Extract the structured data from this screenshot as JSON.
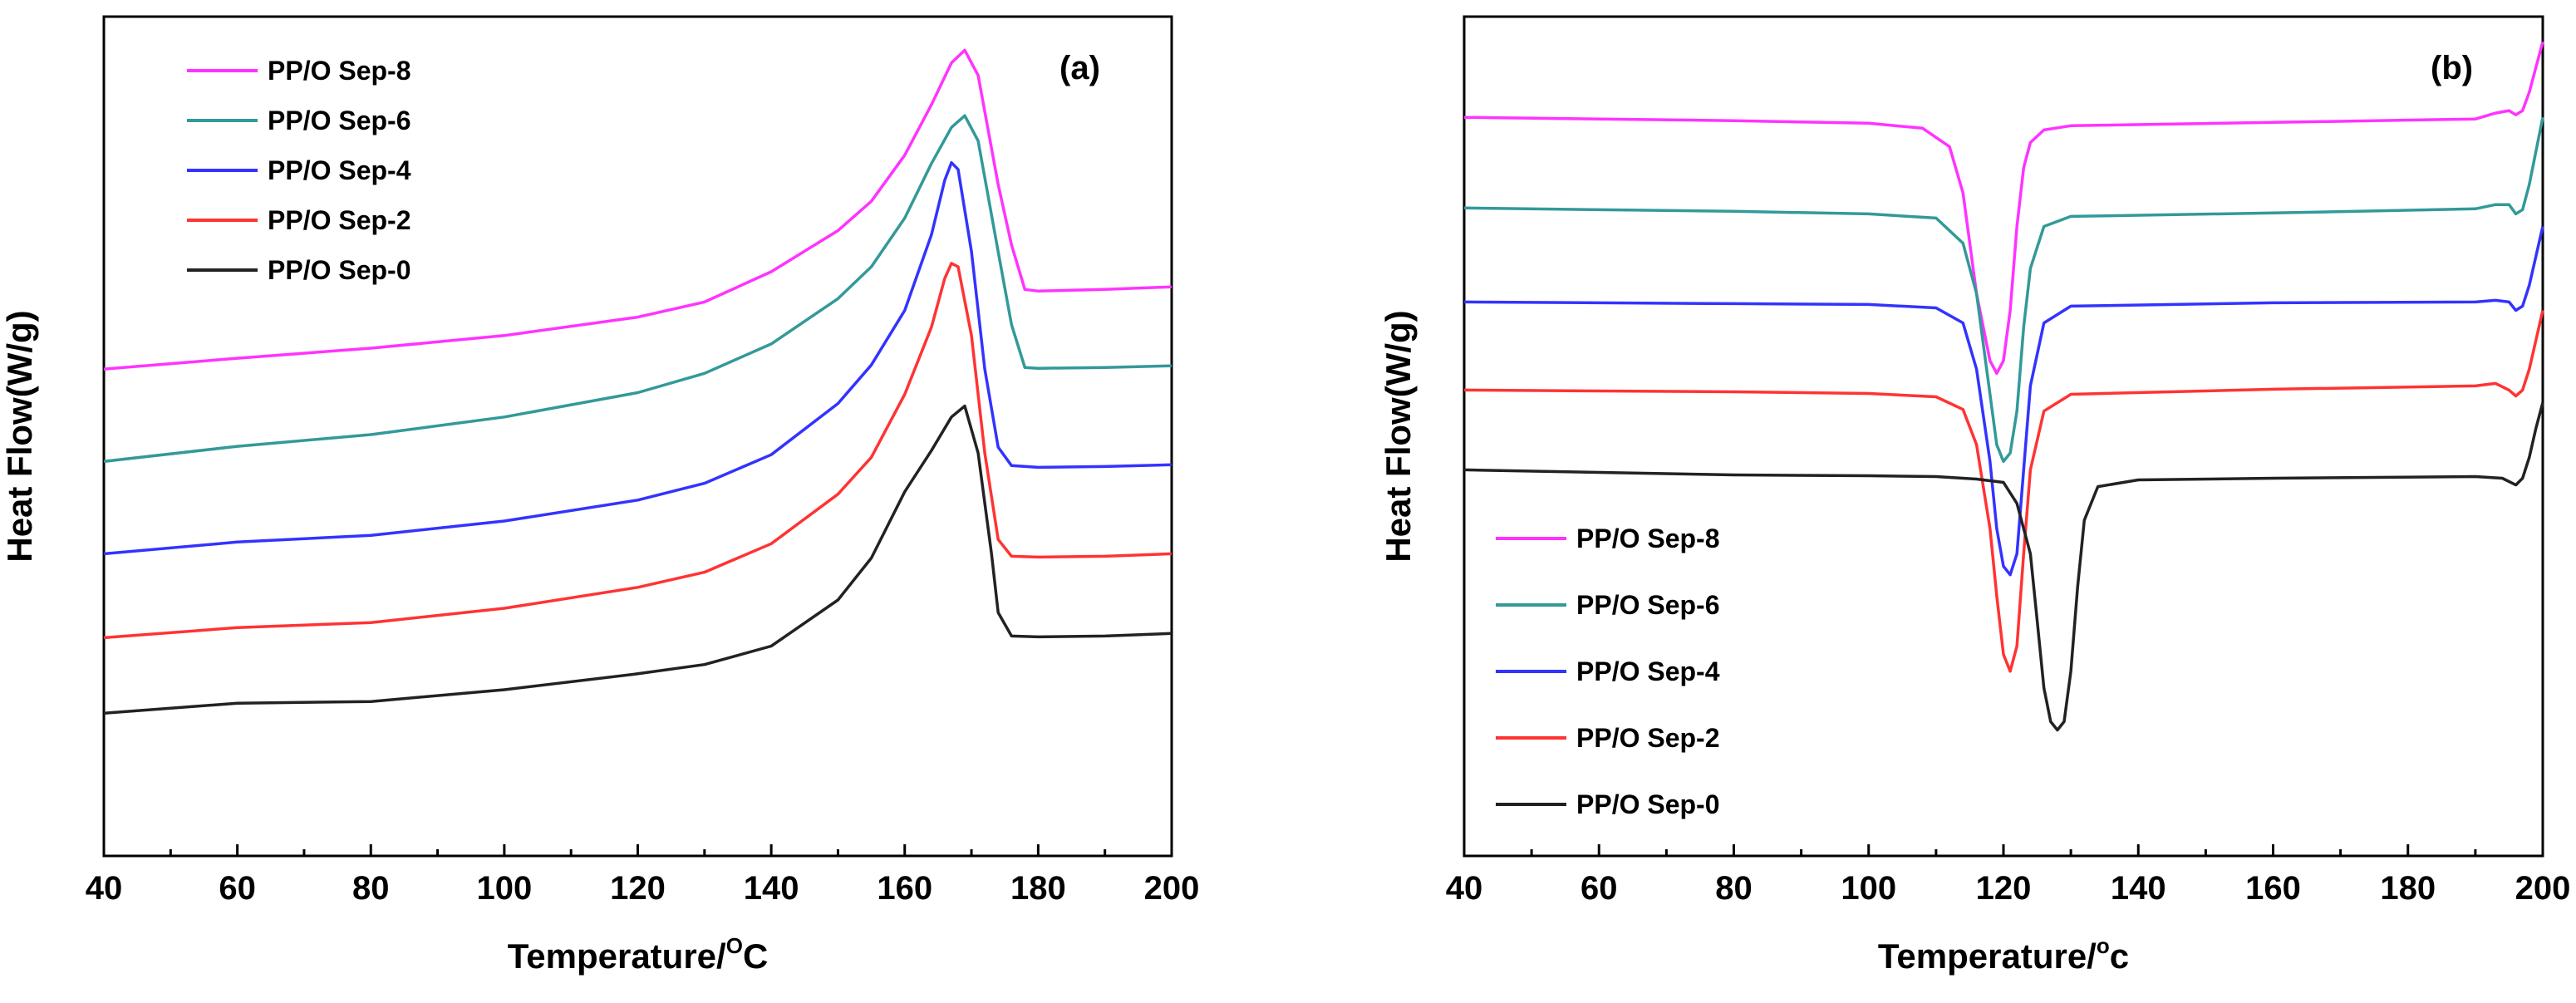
{
  "chart_data": [
    {
      "id": "a",
      "type": "line",
      "panel_label": "(a)",
      "xlabel": "Temperature/",
      "xlabel_sup": "O",
      "xlabel_unit": "C",
      "ylabel": "Heat Flow(W/g)",
      "xlim": [
        40,
        200
      ],
      "ylim": [
        0,
        100
      ],
      "xticks": [
        "40",
        "60",
        "80",
        "100",
        "120",
        "140",
        "160",
        "180",
        "200"
      ],
      "legend_position": "top-left",
      "series": [
        {
          "name": "PP/O Sep-8",
          "color": "#ff33ff",
          "points": [
            [
              40,
              58
            ],
            [
              60,
              59.3
            ],
            [
              80,
              60.5
            ],
            [
              100,
              62
            ],
            [
              120,
              64.2
            ],
            [
              130,
              66
            ],
            [
              140,
              69.6
            ],
            [
              150,
              74.5
            ],
            [
              155,
              78
            ],
            [
              160,
              83.5
            ],
            [
              164,
              89.5
            ],
            [
              167,
              94.5
            ],
            [
              169,
              96
            ],
            [
              171,
              93
            ],
            [
              174,
              80
            ],
            [
              176,
              72.8
            ],
            [
              178,
              67.5
            ],
            [
              180,
              67.3
            ],
            [
              190,
              67.5
            ],
            [
              200,
              67.8
            ]
          ]
        },
        {
          "name": "PP/O Sep-6",
          "color": "#339999",
          "points": [
            [
              40,
              47
            ],
            [
              60,
              48.8
            ],
            [
              80,
              50.2
            ],
            [
              100,
              52.3
            ],
            [
              120,
              55.2
            ],
            [
              130,
              57.5
            ],
            [
              140,
              61
            ],
            [
              150,
              66.4
            ],
            [
              155,
              70.2
            ],
            [
              160,
              76
            ],
            [
              164,
              82.5
            ],
            [
              167,
              86.8
            ],
            [
              169,
              88.2
            ],
            [
              171,
              85.2
            ],
            [
              174,
              72
            ],
            [
              176,
              63.3
            ],
            [
              178,
              58.2
            ],
            [
              180,
              58.1
            ],
            [
              190,
              58.2
            ],
            [
              200,
              58.4
            ]
          ]
        },
        {
          "name": "PP/O Sep-4",
          "color": "#3333ff",
          "points": [
            [
              40,
              36
            ],
            [
              60,
              37.4
            ],
            [
              80,
              38.2
            ],
            [
              100,
              39.9
            ],
            [
              120,
              42.4
            ],
            [
              130,
              44.4
            ],
            [
              140,
              47.8
            ],
            [
              150,
              53.9
            ],
            [
              155,
              58.5
            ],
            [
              160,
              65
            ],
            [
              164,
              74
            ],
            [
              166,
              80.5
            ],
            [
              167,
              82.6
            ],
            [
              168,
              81.8
            ],
            [
              170,
              72
            ],
            [
              172,
              58
            ],
            [
              174,
              48.7
            ],
            [
              176,
              46.5
            ],
            [
              180,
              46.3
            ],
            [
              190,
              46.4
            ],
            [
              200,
              46.6
            ]
          ]
        },
        {
          "name": "PP/O Sep-2",
          "color": "#ff3333",
          "points": [
            [
              40,
              26
            ],
            [
              60,
              27.2
            ],
            [
              80,
              27.8
            ],
            [
              100,
              29.5
            ],
            [
              120,
              32
            ],
            [
              130,
              33.8
            ],
            [
              140,
              37.2
            ],
            [
              150,
              43.1
            ],
            [
              155,
              47.5
            ],
            [
              160,
              55
            ],
            [
              164,
              63
            ],
            [
              166,
              68.8
            ],
            [
              167,
              70.6
            ],
            [
              168,
              70.2
            ],
            [
              170,
              62
            ],
            [
              172,
              48
            ],
            [
              174,
              37.7
            ],
            [
              176,
              35.7
            ],
            [
              180,
              35.6
            ],
            [
              190,
              35.7
            ],
            [
              200,
              36
            ]
          ]
        },
        {
          "name": "PP/O Sep-0",
          "color": "#222222",
          "points": [
            [
              40,
              17
            ],
            [
              60,
              18.2
            ],
            [
              80,
              18.4
            ],
            [
              100,
              19.8
            ],
            [
              120,
              21.7
            ],
            [
              130,
              22.8
            ],
            [
              140,
              25
            ],
            [
              150,
              30.5
            ],
            [
              155,
              35.5
            ],
            [
              160,
              43.4
            ],
            [
              164,
              48.3
            ],
            [
              167,
              52.3
            ],
            [
              169,
              53.6
            ],
            [
              171,
              48
            ],
            [
              173,
              36
            ],
            [
              174,
              29
            ],
            [
              176,
              26.2
            ],
            [
              180,
              26.1
            ],
            [
              190,
              26.2
            ],
            [
              200,
              26.5
            ]
          ]
        }
      ]
    },
    {
      "id": "b",
      "type": "line",
      "panel_label": "(b)",
      "xlabel": "Temperature/",
      "xlabel_sup": "o",
      "xlabel_unit": "c",
      "ylabel": "Heat Flow(W/g)",
      "xlim": [
        40,
        200
      ],
      "ylim": [
        0,
        100
      ],
      "xticks": [
        "40",
        "60",
        "80",
        "100",
        "120",
        "140",
        "160",
        "180",
        "200"
      ],
      "legend_position": "bottom-left",
      "series": [
        {
          "name": "PP/O Sep-8",
          "color": "#ff33ff",
          "points": [
            [
              40,
              88
            ],
            [
              80,
              87.6
            ],
            [
              100,
              87.3
            ],
            [
              108,
              86.7
            ],
            [
              112,
              84.5
            ],
            [
              114,
              79
            ],
            [
              116,
              67
            ],
            [
              118,
              59
            ],
            [
              119,
              57.5
            ],
            [
              120,
              59
            ],
            [
              121,
              65
            ],
            [
              122,
              75
            ],
            [
              123,
              82
            ],
            [
              124,
              85
            ],
            [
              126,
              86.5
            ],
            [
              130,
              87
            ],
            [
              160,
              87.4
            ],
            [
              190,
              87.8
            ],
            [
              193,
              88.5
            ],
            [
              195,
              88.8
            ],
            [
              196,
              88.3
            ],
            [
              197,
              88.8
            ],
            [
              198,
              91
            ],
            [
              199,
              94
            ],
            [
              200,
              97
            ]
          ]
        },
        {
          "name": "PP/O Sep-6",
          "color": "#339999",
          "points": [
            [
              40,
              77.2
            ],
            [
              80,
              76.8
            ],
            [
              100,
              76.5
            ],
            [
              110,
              76
            ],
            [
              114,
              73
            ],
            [
              116,
              67
            ],
            [
              118,
              55
            ],
            [
              119,
              49
            ],
            [
              120,
              47
            ],
            [
              121,
              48
            ],
            [
              122,
              53
            ],
            [
              123,
              63
            ],
            [
              124,
              70
            ],
            [
              126,
              75
            ],
            [
              130,
              76.2
            ],
            [
              160,
              76.6
            ],
            [
              190,
              77.1
            ],
            [
              193,
              77.6
            ],
            [
              195,
              77.6
            ],
            [
              196,
              76.5
            ],
            [
              197,
              77
            ],
            [
              198,
              80
            ],
            [
              199,
              84
            ],
            [
              200,
              88
            ]
          ]
        },
        {
          "name": "PP/O Sep-4",
          "color": "#3333ff",
          "points": [
            [
              40,
              66
            ],
            [
              80,
              65.8
            ],
            [
              100,
              65.7
            ],
            [
              110,
              65.3
            ],
            [
              114,
              63.5
            ],
            [
              116,
              58
            ],
            [
              118,
              47
            ],
            [
              119,
              39
            ],
            [
              120,
              34.5
            ],
            [
              121,
              33.5
            ],
            [
              122,
              36
            ],
            [
              123,
              46
            ],
            [
              124,
              56
            ],
            [
              126,
              63.5
            ],
            [
              130,
              65.5
            ],
            [
              160,
              65.9
            ],
            [
              190,
              66
            ],
            [
              193,
              66.2
            ],
            [
              195,
              66
            ],
            [
              196,
              65
            ],
            [
              197,
              65.5
            ],
            [
              198,
              68
            ],
            [
              199,
              71.5
            ],
            [
              200,
              75
            ]
          ]
        },
        {
          "name": "PP/O Sep-2",
          "color": "#ff3333",
          "points": [
            [
              40,
              55.5
            ],
            [
              80,
              55.3
            ],
            [
              100,
              55.1
            ],
            [
              110,
              54.7
            ],
            [
              114,
              53.2
            ],
            [
              116,
              49
            ],
            [
              118,
              39
            ],
            [
              119,
              31
            ],
            [
              120,
              24
            ],
            [
              121,
              22
            ],
            [
              122,
              25
            ],
            [
              123,
              36
            ],
            [
              124,
              46
            ],
            [
              126,
              53
            ],
            [
              130,
              55
            ],
            [
              160,
              55.6
            ],
            [
              190,
              56
            ],
            [
              193,
              56.3
            ],
            [
              195,
              55.5
            ],
            [
              196,
              54.8
            ],
            [
              197,
              55.5
            ],
            [
              198,
              58
            ],
            [
              199,
              61.5
            ],
            [
              200,
              65
            ]
          ]
        },
        {
          "name": "PP/O Sep-0",
          "color": "#222222",
          "points": [
            [
              40,
              46
            ],
            [
              80,
              45.4
            ],
            [
              100,
              45.3
            ],
            [
              110,
              45.2
            ],
            [
              116,
              44.9
            ],
            [
              120,
              44.5
            ],
            [
              122,
              42
            ],
            [
              124,
              36
            ],
            [
              125,
              28
            ],
            [
              126,
              20
            ],
            [
              127,
              16
            ],
            [
              128,
              15
            ],
            [
              129,
              16
            ],
            [
              130,
              22
            ],
            [
              131,
              32
            ],
            [
              132,
              40
            ],
            [
              134,
              44
            ],
            [
              140,
              44.8
            ],
            [
              160,
              45
            ],
            [
              190,
              45.2
            ],
            [
              194,
              45
            ],
            [
              196,
              44.2
            ],
            [
              197,
              45
            ],
            [
              198,
              47.5
            ],
            [
              199,
              51
            ],
            [
              200,
              54
            ]
          ]
        }
      ]
    }
  ]
}
